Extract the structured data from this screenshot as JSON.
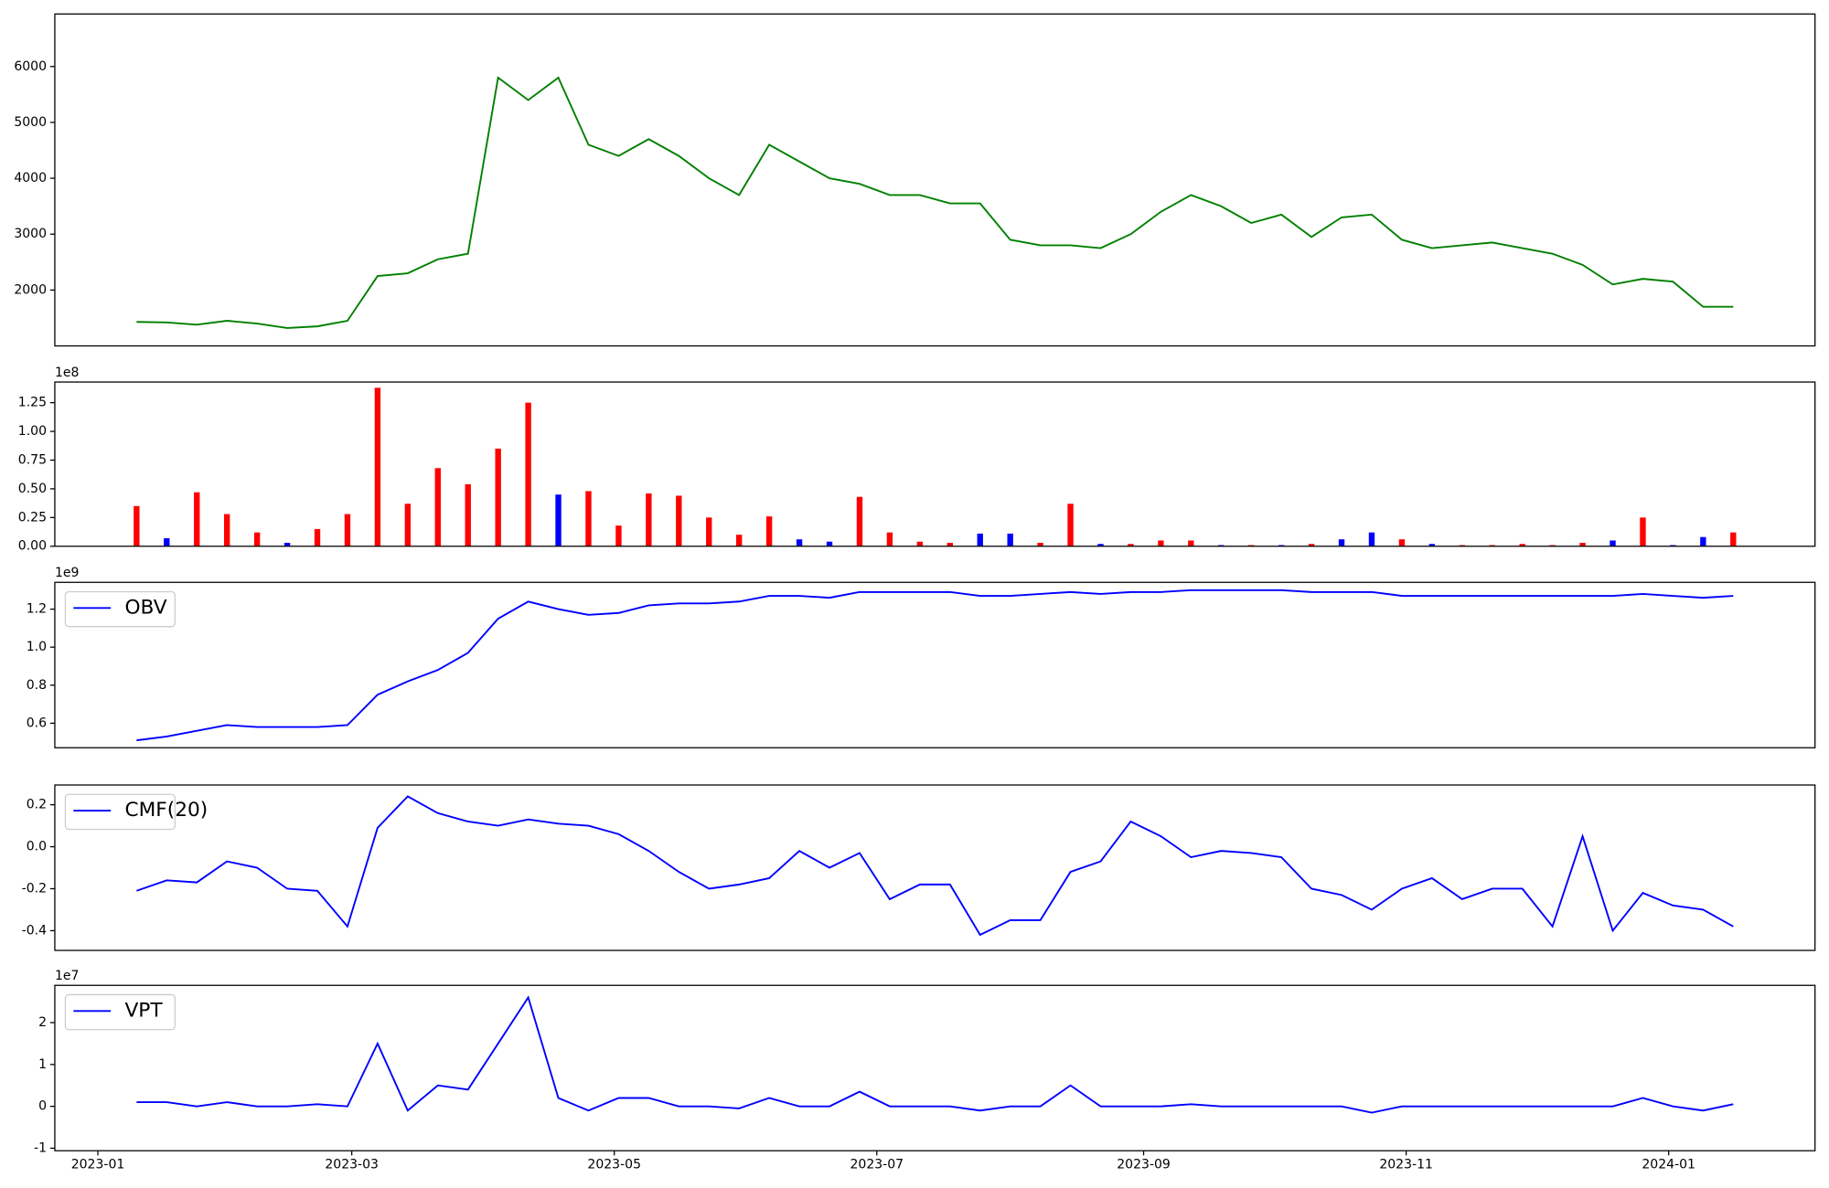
{
  "chart_data": [
    {
      "type": "line",
      "x": [
        9,
        16,
        23,
        30,
        37,
        44,
        51,
        58,
        65,
        72,
        79,
        86,
        93,
        100,
        107,
        114,
        121,
        128,
        135,
        142,
        149,
        156,
        163,
        170,
        177,
        184,
        191,
        198,
        205,
        212,
        219,
        226,
        233,
        240,
        247,
        254,
        261,
        268,
        275,
        282,
        289,
        296,
        303,
        310,
        317,
        324,
        331,
        338,
        345,
        352,
        359,
        366,
        373,
        380
      ],
      "values": [
        1430,
        1420,
        1380,
        1450,
        1400,
        1320,
        1350,
        1450,
        2250,
        2300,
        2550,
        2650,
        5800,
        5400,
        5800,
        4600,
        4400,
        4700,
        4400,
        4000,
        3700,
        4600,
        4300,
        4000,
        3900,
        3700,
        3700,
        3550,
        3550,
        2900,
        2800,
        2800,
        2750,
        3000,
        3400,
        3700,
        3500,
        3200,
        3350,
        2950,
        3300,
        3350,
        2900,
        2750,
        2800,
        2850,
        2750,
        2650,
        2450,
        2100,
        2200,
        2150,
        1700,
        1700
      ],
      "color": "green",
      "xlim": [
        -10,
        399
      ],
      "ylim": [
        1000,
        6940
      ],
      "yticks": [
        2000,
        3000,
        4000,
        5000,
        6000
      ]
    },
    {
      "type": "bar",
      "x": [
        9,
        16,
        23,
        30,
        37,
        44,
        51,
        58,
        65,
        72,
        79,
        86,
        93,
        100,
        107,
        114,
        121,
        128,
        135,
        142,
        149,
        156,
        163,
        170,
        177,
        184,
        191,
        198,
        205,
        212,
        219,
        226,
        233,
        240,
        247,
        254,
        261,
        268,
        275,
        282,
        289,
        296,
        303,
        310,
        317,
        324,
        331,
        338,
        345,
        352,
        359,
        366,
        373,
        380
      ],
      "values": [
        0.35,
        0.07,
        0.47,
        0.28,
        0.12,
        0.03,
        0.15,
        0.28,
        1.38,
        0.37,
        0.68,
        0.54,
        0.85,
        1.25,
        0.45,
        0.48,
        0.18,
        0.46,
        0.44,
        0.25,
        0.1,
        0.26,
        0.06,
        0.04,
        0.43,
        0.12,
        0.04,
        0.03,
        0.11,
        0.11,
        0.03,
        0.37,
        0.02,
        0.02,
        0.05,
        0.05,
        0.01,
        0.01,
        0.01,
        0.02,
        0.06,
        0.12,
        0.06,
        0.02,
        0.01,
        0.01,
        0.02,
        0.01,
        0.03,
        0.05,
        0.25,
        0.01,
        0.08,
        0.12
      ],
      "colors": [
        "red",
        "blue",
        "red",
        "red",
        "red",
        "blue",
        "red",
        "red",
        "red",
        "red",
        "red",
        "red",
        "red",
        "red",
        "blue",
        "red",
        "red",
        "red",
        "red",
        "red",
        "red",
        "red",
        "blue",
        "blue",
        "red",
        "red",
        "red",
        "red",
        "blue",
        "blue",
        "red",
        "red",
        "blue",
        "red",
        "red",
        "red",
        "blue",
        "red",
        "blue",
        "red",
        "blue",
        "blue",
        "red",
        "blue",
        "red",
        "red",
        "red",
        "red",
        "red",
        "blue",
        "red",
        "blue",
        "blue",
        "red"
      ],
      "xlim": [
        -10,
        399
      ],
      "ylim": [
        0,
        1.43
      ],
      "yticks": [
        {
          "value": 0,
          "label": "0.00"
        },
        0.25,
        {
          "value": 0.5,
          "label": "0.50"
        },
        0.75,
        {
          "value": 1,
          "label": "1.00"
        },
        1.25
      ],
      "offset_text": "1e8"
    },
    {
      "type": "line",
      "x": [
        9,
        16,
        23,
        30,
        37,
        44,
        51,
        58,
        65,
        72,
        79,
        86,
        93,
        100,
        107,
        114,
        121,
        128,
        135,
        142,
        149,
        156,
        163,
        170,
        177,
        184,
        191,
        198,
        205,
        212,
        219,
        226,
        233,
        240,
        247,
        254,
        261,
        268,
        275,
        282,
        289,
        296,
        303,
        310,
        317,
        324,
        331,
        338,
        345,
        352,
        359,
        366,
        373,
        380
      ],
      "series": [
        {
          "name": "OBV",
          "color": "blue",
          "values": [
            0.51,
            0.53,
            0.56,
            0.59,
            0.58,
            0.58,
            0.58,
            0.59,
            0.75,
            0.82,
            0.88,
            0.97,
            1.15,
            1.24,
            1.2,
            1.17,
            1.18,
            1.22,
            1.23,
            1.23,
            1.24,
            1.27,
            1.27,
            1.26,
            1.29,
            1.29,
            1.29,
            1.29,
            1.27,
            1.27,
            1.28,
            1.29,
            1.28,
            1.29,
            1.29,
            1.3,
            1.3,
            1.3,
            1.3,
            1.29,
            1.29,
            1.29,
            1.27,
            1.27,
            1.27,
            1.27,
            1.27,
            1.27,
            1.27,
            1.27,
            1.28,
            1.27,
            1.26,
            1.27
          ]
        }
      ],
      "xlim": [
        -10,
        399
      ],
      "ylim": [
        0.471,
        1.341
      ],
      "yticks": [
        0.6,
        0.8,
        {
          "value": 1,
          "label": "1.0"
        },
        1.2
      ],
      "offset_text": "1e9",
      "legend": "upper left"
    },
    {
      "type": "line",
      "x": [
        9,
        16,
        23,
        30,
        37,
        44,
        51,
        58,
        65,
        72,
        79,
        86,
        93,
        100,
        107,
        114,
        121,
        128,
        135,
        142,
        149,
        156,
        163,
        170,
        177,
        184,
        191,
        198,
        205,
        212,
        219,
        226,
        233,
        240,
        247,
        254,
        261,
        268,
        275,
        282,
        289,
        296,
        303,
        310,
        317,
        324,
        331,
        338,
        345,
        352,
        359,
        366,
        373,
        380
      ],
      "series": [
        {
          "name": "CMF(20)",
          "color": "blue",
          "values": [
            -0.21,
            -0.16,
            -0.17,
            -0.07,
            -0.1,
            -0.2,
            -0.21,
            -0.38,
            0.09,
            0.24,
            0.16,
            0.12,
            0.1,
            0.13,
            0.11,
            0.1,
            0.06,
            -0.02,
            -0.12,
            -0.2,
            -0.18,
            -0.15,
            -0.02,
            -0.1,
            -0.03,
            -0.25,
            -0.18,
            -0.18,
            -0.42,
            -0.35,
            -0.35,
            -0.12,
            -0.07,
            0.12,
            0.05,
            -0.05,
            -0.02,
            -0.03,
            -0.05,
            -0.2,
            -0.23,
            -0.3,
            -0.2,
            -0.15,
            -0.25,
            -0.2,
            -0.2,
            -0.38,
            0.05,
            -0.4,
            -0.22,
            -0.28,
            -0.3,
            -0.38
          ]
        }
      ],
      "xlim": [
        -10,
        399
      ],
      "ylim": [
        -0.494,
        0.294
      ],
      "yticks": [
        -0.4,
        -0.2,
        {
          "value": 0,
          "label": "0.0"
        },
        0.2
      ],
      "legend": "upper left"
    },
    {
      "type": "line",
      "x": [
        9,
        16,
        23,
        30,
        37,
        44,
        51,
        58,
        65,
        72,
        79,
        86,
        93,
        100,
        107,
        114,
        121,
        128,
        135,
        142,
        149,
        156,
        163,
        170,
        177,
        184,
        191,
        198,
        205,
        212,
        219,
        226,
        233,
        240,
        247,
        254,
        261,
        268,
        275,
        282,
        289,
        296,
        303,
        310,
        317,
        324,
        331,
        338,
        345,
        352,
        359,
        366,
        373,
        380
      ],
      "series": [
        {
          "name": "VPT",
          "color": "blue",
          "values": [
            0.1,
            0.1,
            0,
            0.1,
            0,
            0,
            0.05,
            0,
            1.5,
            -0.1,
            0.5,
            0.4,
            1.5,
            2.6,
            0.2,
            -0.1,
            0.2,
            0.2,
            0,
            0,
            -0.05,
            0.2,
            0,
            0,
            0.35,
            0,
            0,
            0,
            -0.1,
            0,
            0,
            0.5,
            0,
            0,
            0,
            0.05,
            0,
            0,
            0,
            0,
            0,
            -0.15,
            0,
            0,
            0,
            0,
            0,
            0,
            0,
            0,
            0.2,
            0,
            -0.1,
            0.05
          ]
        }
      ],
      "xlim": [
        -10,
        399
      ],
      "ylim": [
        -1.06,
        2.89
      ],
      "yticks": [
        -1,
        0,
        1,
        2
      ],
      "offset_text": "1e7",
      "legend": "upper left",
      "xticks": [
        {
          "value": 0,
          "label": "2023-01"
        },
        {
          "value": 59,
          "label": "2023-03"
        },
        {
          "value": 120,
          "label": "2023-05"
        },
        {
          "value": 181,
          "label": "2023-07"
        },
        {
          "value": 243,
          "label": "2023-09"
        },
        {
          "value": 304,
          "label": "2023-11"
        },
        {
          "value": 365,
          "label": "2024-01"
        }
      ]
    }
  ]
}
